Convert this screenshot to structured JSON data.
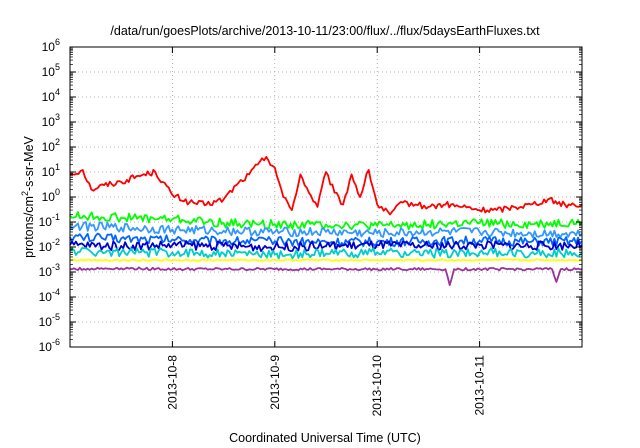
{
  "chart_data": {
    "type": "line",
    "title": "/data/run/goesPlots/archive/2013-10-11/23:00/flux/../flux/5daysEarthFluxes.txt",
    "xlabel": "Coordinated Universal Time (UTC)",
    "ylabel": "protons/cm²-s-sr-MeV",
    "y_scale": "log",
    "ylim": [
      1e-06,
      1000000.0
    ],
    "y_ticks": [
      {
        "value": 1e-06,
        "base": "10",
        "exp": "-6"
      },
      {
        "value": 1e-05,
        "base": "10",
        "exp": "-5"
      },
      {
        "value": 0.0001,
        "base": "10",
        "exp": "-4"
      },
      {
        "value": 0.001,
        "base": "10",
        "exp": "-3"
      },
      {
        "value": 0.01,
        "base": "10",
        "exp": "-2"
      },
      {
        "value": 0.1,
        "base": "10",
        "exp": "-1"
      },
      {
        "value": 1,
        "base": "10",
        "exp": "0"
      },
      {
        "value": 10,
        "base": "10",
        "exp": "1"
      },
      {
        "value": 100,
        "base": "10",
        "exp": "2"
      },
      {
        "value": 1000,
        "base": "10",
        "exp": "3"
      },
      {
        "value": 10000,
        "base": "10",
        "exp": "4"
      },
      {
        "value": 100000,
        "base": "10",
        "exp": "5"
      },
      {
        "value": 1000000,
        "base": "10",
        "exp": "6"
      }
    ],
    "xlim": [
      "2013-10-07 00:00",
      "2013-10-12 00:00"
    ],
    "x_ticks": [
      "2013-10-8",
      "2013-10-9",
      "2013-10-10",
      "2013-10-11"
    ],
    "x_tick_values": [
      "2013-10-08 00:00",
      "2013-10-09 00:00",
      "2013-10-10 00:00",
      "2013-10-11 00:00"
    ],
    "grid": true,
    "grid_style": "dotted",
    "series": [
      {
        "color": "#ff0000",
        "x": [
          "2013-10-07 00:00",
          "2013-10-07 03:00",
          "2013-10-07 05:00",
          "2013-10-07 08:00",
          "2013-10-07 12:00",
          "2013-10-07 16:00",
          "2013-10-07 20:00",
          "2013-10-08 00:00",
          "2013-10-08 04:00",
          "2013-10-08 08:00",
          "2013-10-08 12:00",
          "2013-10-08 15:00",
          "2013-10-08 18:00",
          "2013-10-08 20:00",
          "2013-10-08 22:00",
          "2013-10-09 00:00",
          "2013-10-09 02:00",
          "2013-10-09 04:00",
          "2013-10-09 06:00",
          "2013-10-09 08:00",
          "2013-10-09 10:00",
          "2013-10-09 12:00",
          "2013-10-09 14:00",
          "2013-10-09 16:00",
          "2013-10-09 18:00",
          "2013-10-09 20:00",
          "2013-10-09 22:00",
          "2013-10-10 00:00",
          "2013-10-10 03:00",
          "2013-10-10 06:00",
          "2013-10-10 09:00",
          "2013-10-10 12:00",
          "2013-10-10 16:00",
          "2013-10-10 20:00",
          "2013-10-11 00:00",
          "2013-10-11 04:00",
          "2013-10-11 08:00",
          "2013-10-11 12:00",
          "2013-10-11 16:00",
          "2013-10-11 20:00",
          "2013-10-12 00:00"
        ],
        "y": [
          8,
          12,
          2,
          3,
          4,
          7,
          10,
          1.2,
          0.6,
          0.5,
          0.8,
          3,
          8,
          20,
          40,
          15,
          1,
          0.3,
          8,
          1.5,
          0.4,
          10,
          1.5,
          0.5,
          8,
          1,
          12,
          0.5,
          0.2,
          0.6,
          0.5,
          0.4,
          0.5,
          0.4,
          0.3,
          0.3,
          0.4,
          0.5,
          0.8,
          0.5,
          0.5
        ]
      },
      {
        "color": "#00ff00",
        "x": [
          "2013-10-07 00:00",
          "2013-10-07 12:00",
          "2013-10-08 00:00",
          "2013-10-08 12:00",
          "2013-10-09 00:00",
          "2013-10-09 12:00",
          "2013-10-10 00:00",
          "2013-10-10 12:00",
          "2013-10-11 00:00",
          "2013-10-11 12:00",
          "2013-10-12 00:00"
        ],
        "y": [
          0.18,
          0.15,
          0.13,
          0.09,
          0.08,
          0.08,
          0.07,
          0.08,
          0.09,
          0.08,
          0.1
        ]
      },
      {
        "color": "#3399ff",
        "x": [
          "2013-10-07 00:00",
          "2013-10-07 12:00",
          "2013-10-08 00:00",
          "2013-10-08 12:00",
          "2013-10-09 00:00",
          "2013-10-09 12:00",
          "2013-10-10 00:00",
          "2013-10-10 12:00",
          "2013-10-11 00:00",
          "2013-10-11 12:00",
          "2013-10-12 00:00"
        ],
        "y": [
          0.07,
          0.06,
          0.05,
          0.045,
          0.04,
          0.04,
          0.035,
          0.04,
          0.04,
          0.035,
          0.035
        ]
      },
      {
        "color": "#0066ff",
        "x": [
          "2013-10-07 00:00",
          "2013-10-07 12:00",
          "2013-10-08 00:00",
          "2013-10-08 12:00",
          "2013-10-09 00:00",
          "2013-10-09 12:00",
          "2013-10-10 00:00",
          "2013-10-10 12:00",
          "2013-10-11 00:00",
          "2013-10-11 12:00",
          "2013-10-12 00:00"
        ],
        "y": [
          0.025,
          0.022,
          0.02,
          0.018,
          0.017,
          0.016,
          0.016,
          0.017,
          0.018,
          0.016,
          0.017
        ]
      },
      {
        "color": "#0000cc",
        "x": [
          "2013-10-07 00:00",
          "2013-10-07 12:00",
          "2013-10-08 00:00",
          "2013-10-08 12:00",
          "2013-10-09 00:00",
          "2013-10-09 12:00",
          "2013-10-10 00:00",
          "2013-10-10 12:00",
          "2013-10-11 00:00",
          "2013-10-11 12:00",
          "2013-10-12 00:00"
        ],
        "y": [
          0.012,
          0.011,
          0.012,
          0.011,
          0.01,
          0.011,
          0.012,
          0.011,
          0.012,
          0.011,
          0.012
        ]
      },
      {
        "color": "#00cccc",
        "x": [
          "2013-10-07 00:00",
          "2013-10-07 12:00",
          "2013-10-08 00:00",
          "2013-10-08 12:00",
          "2013-10-09 00:00",
          "2013-10-09 12:00",
          "2013-10-10 00:00",
          "2013-10-10 12:00",
          "2013-10-11 00:00",
          "2013-10-11 12:00",
          "2013-10-12 00:00"
        ],
        "y": [
          0.007,
          0.006,
          0.006,
          0.0055,
          0.005,
          0.0055,
          0.006,
          0.0055,
          0.006,
          0.0055,
          0.006
        ]
      },
      {
        "color": "#ffff00",
        "x": [
          "2013-10-07 00:00",
          "2013-10-07 12:00",
          "2013-10-08 00:00",
          "2013-10-08 12:00",
          "2013-10-09 00:00",
          "2013-10-09 12:00",
          "2013-10-10 00:00",
          "2013-10-10 12:00",
          "2013-10-11 00:00",
          "2013-10-11 12:00",
          "2013-10-12 00:00"
        ],
        "y": [
          0.003,
          0.003,
          0.003,
          0.003,
          0.003,
          0.003,
          0.003,
          0.003,
          0.003,
          0.003,
          0.003
        ]
      },
      {
        "color": "#993399",
        "x": [
          "2013-10-07 00:00",
          "2013-10-07 12:00",
          "2013-10-08 00:00",
          "2013-10-08 12:00",
          "2013-10-09 00:00",
          "2013-10-09 12:00",
          "2013-10-10 00:00",
          "2013-10-10 12:00",
          "2013-10-10 16:00",
          "2013-10-10 17:00",
          "2013-10-10 18:00",
          "2013-10-11 00:00",
          "2013-10-11 12:00",
          "2013-10-11 17:00",
          "2013-10-11 18:00",
          "2013-10-11 19:00",
          "2013-10-12 00:00"
        ],
        "y": [
          0.0013,
          0.0014,
          0.0013,
          0.0013,
          0.0013,
          0.0013,
          0.0013,
          0.0013,
          0.0013,
          0.0003,
          0.0013,
          0.0013,
          0.0013,
          0.0013,
          0.0004,
          0.0013,
          0.0013
        ]
      }
    ]
  }
}
